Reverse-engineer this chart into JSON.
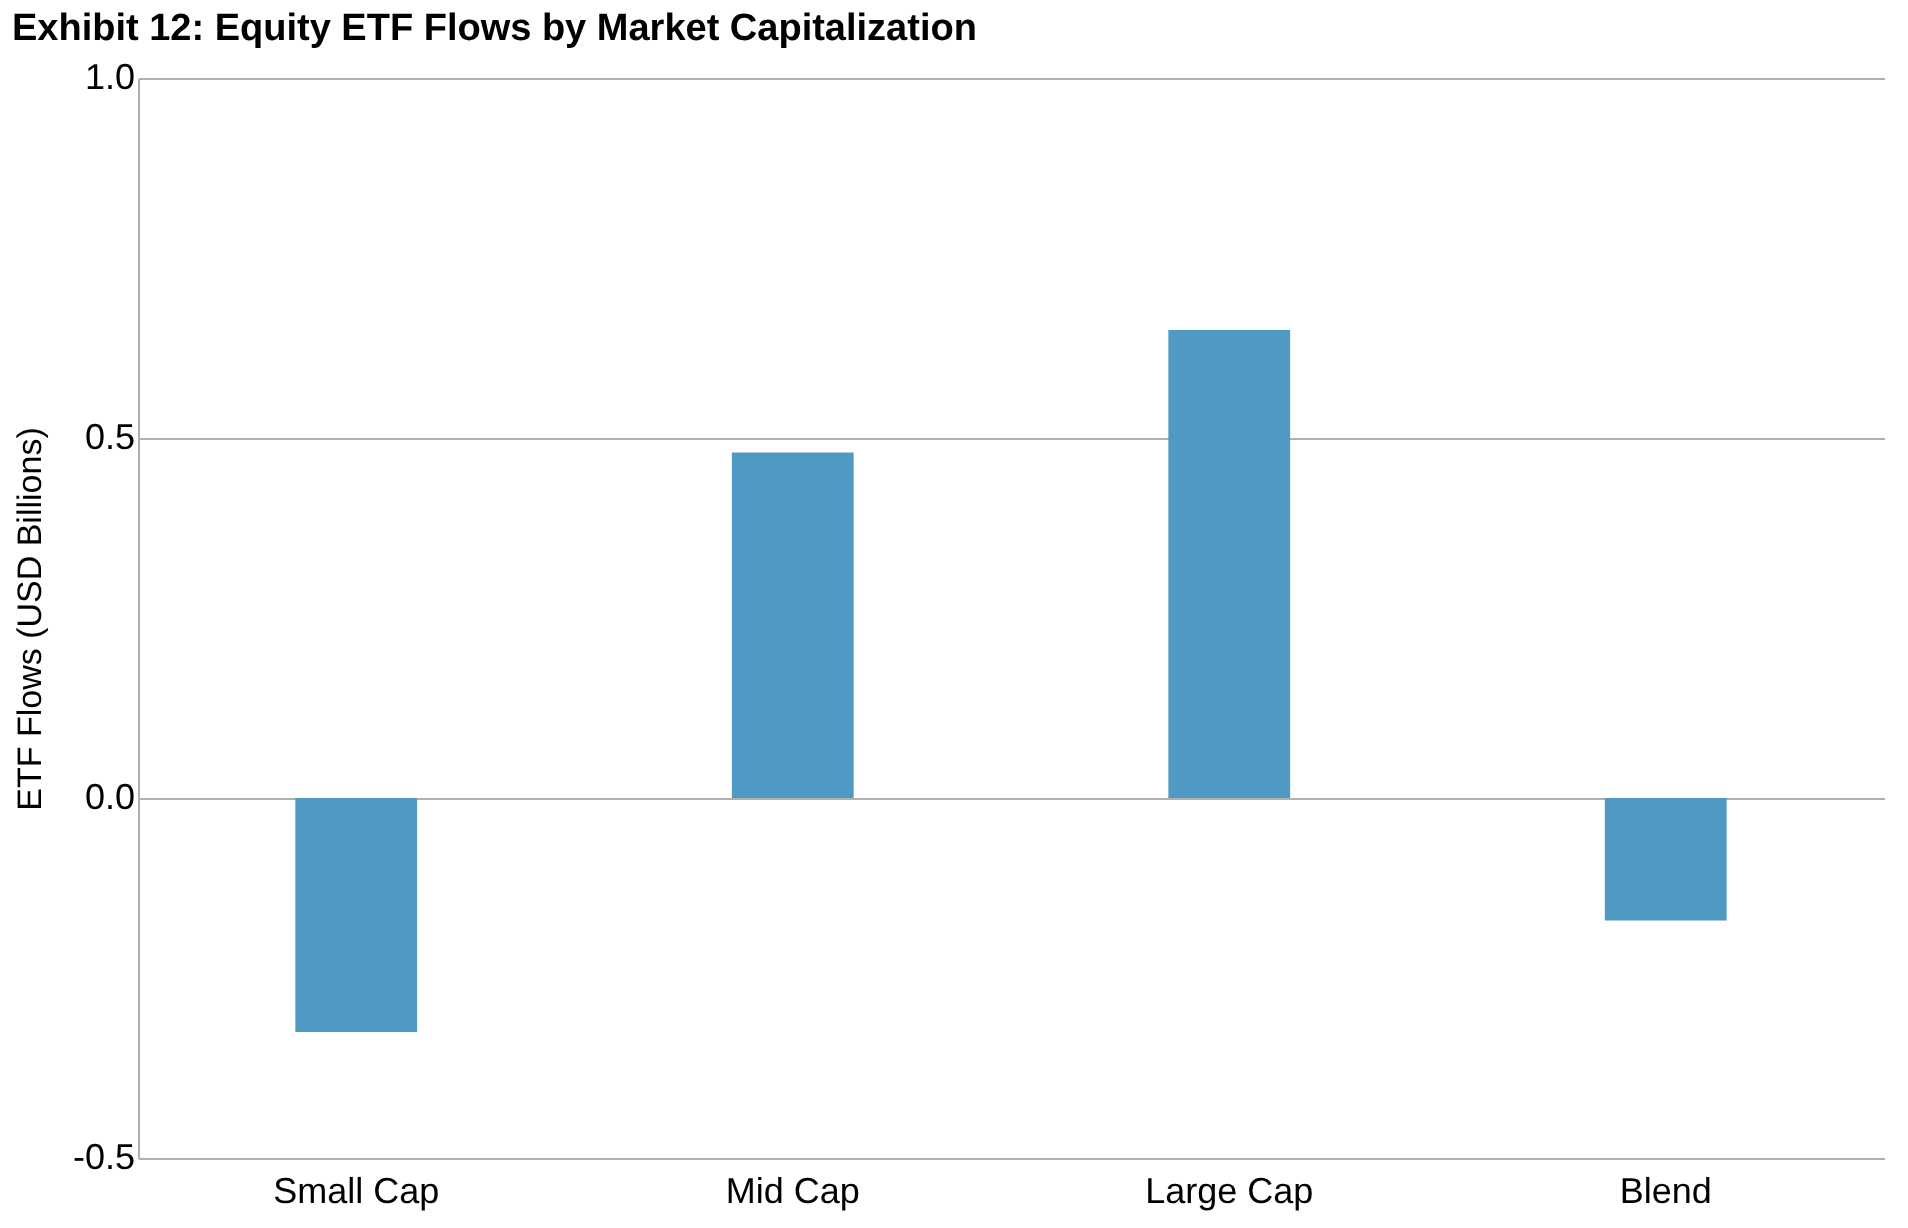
{
  "chart_data": {
    "type": "bar",
    "title": "Exhibit 12: Equity ETF Flows by Market Capitalization",
    "ylabel": "ETF Flows (USD Billions)",
    "categories": [
      "Small Cap",
      "Mid Cap",
      "Large Cap",
      "Blend"
    ],
    "values": [
      -0.325,
      0.48,
      0.65,
      -0.17
    ],
    "color": "#4f9ac2",
    "ylim": [
      -0.5,
      1.0
    ],
    "yticks": [
      {
        "value": -0.5,
        "label": "-0.5"
      },
      {
        "value": 0.0,
        "label": "0.0"
      },
      {
        "value": 0.5,
        "label": "0.5"
      },
      {
        "value": 1.0,
        "label": "1.0"
      }
    ],
    "grid": "y"
  }
}
